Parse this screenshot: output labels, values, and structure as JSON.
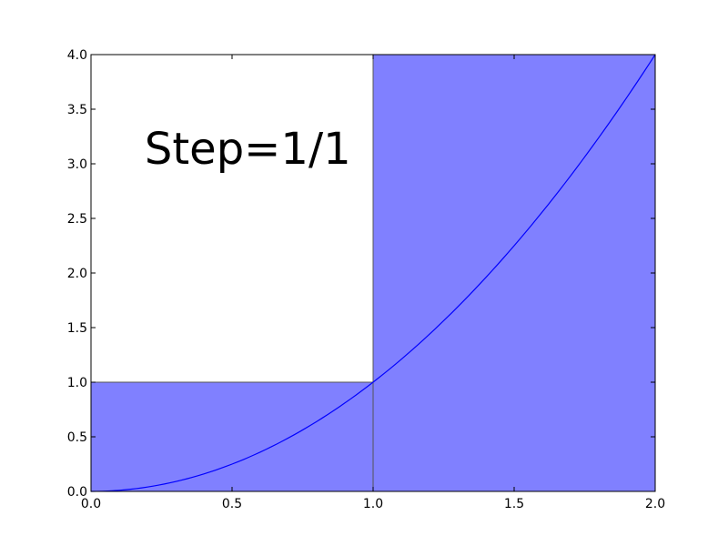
{
  "chart_data": {
    "type": "area",
    "curve": {
      "function": "x^2",
      "samples": 101
    },
    "bars": [
      {
        "x_start": 0.0,
        "x_end": 1.0,
        "height": 1.0
      },
      {
        "x_start": 1.0,
        "x_end": 2.0,
        "height": 4.0
      }
    ],
    "xlim": [
      0.0,
      2.0
    ],
    "ylim": [
      0.0,
      4.0
    ],
    "x_ticks": [
      "0.0",
      "0.5",
      "1.0",
      "1.5",
      "2.0"
    ],
    "y_ticks": [
      "0.0",
      "0.5",
      "1.0",
      "1.5",
      "2.0",
      "2.5",
      "3.0",
      "3.5",
      "4.0"
    ],
    "annotation": {
      "text": "Step=1/1",
      "x": 0.19,
      "y": 3.0
    },
    "colors": {
      "bar_fill": "#8080ff",
      "bar_edge": "#555555",
      "curve": "#0000ff",
      "axes": "#000000"
    },
    "grid": false,
    "legend": "none"
  }
}
